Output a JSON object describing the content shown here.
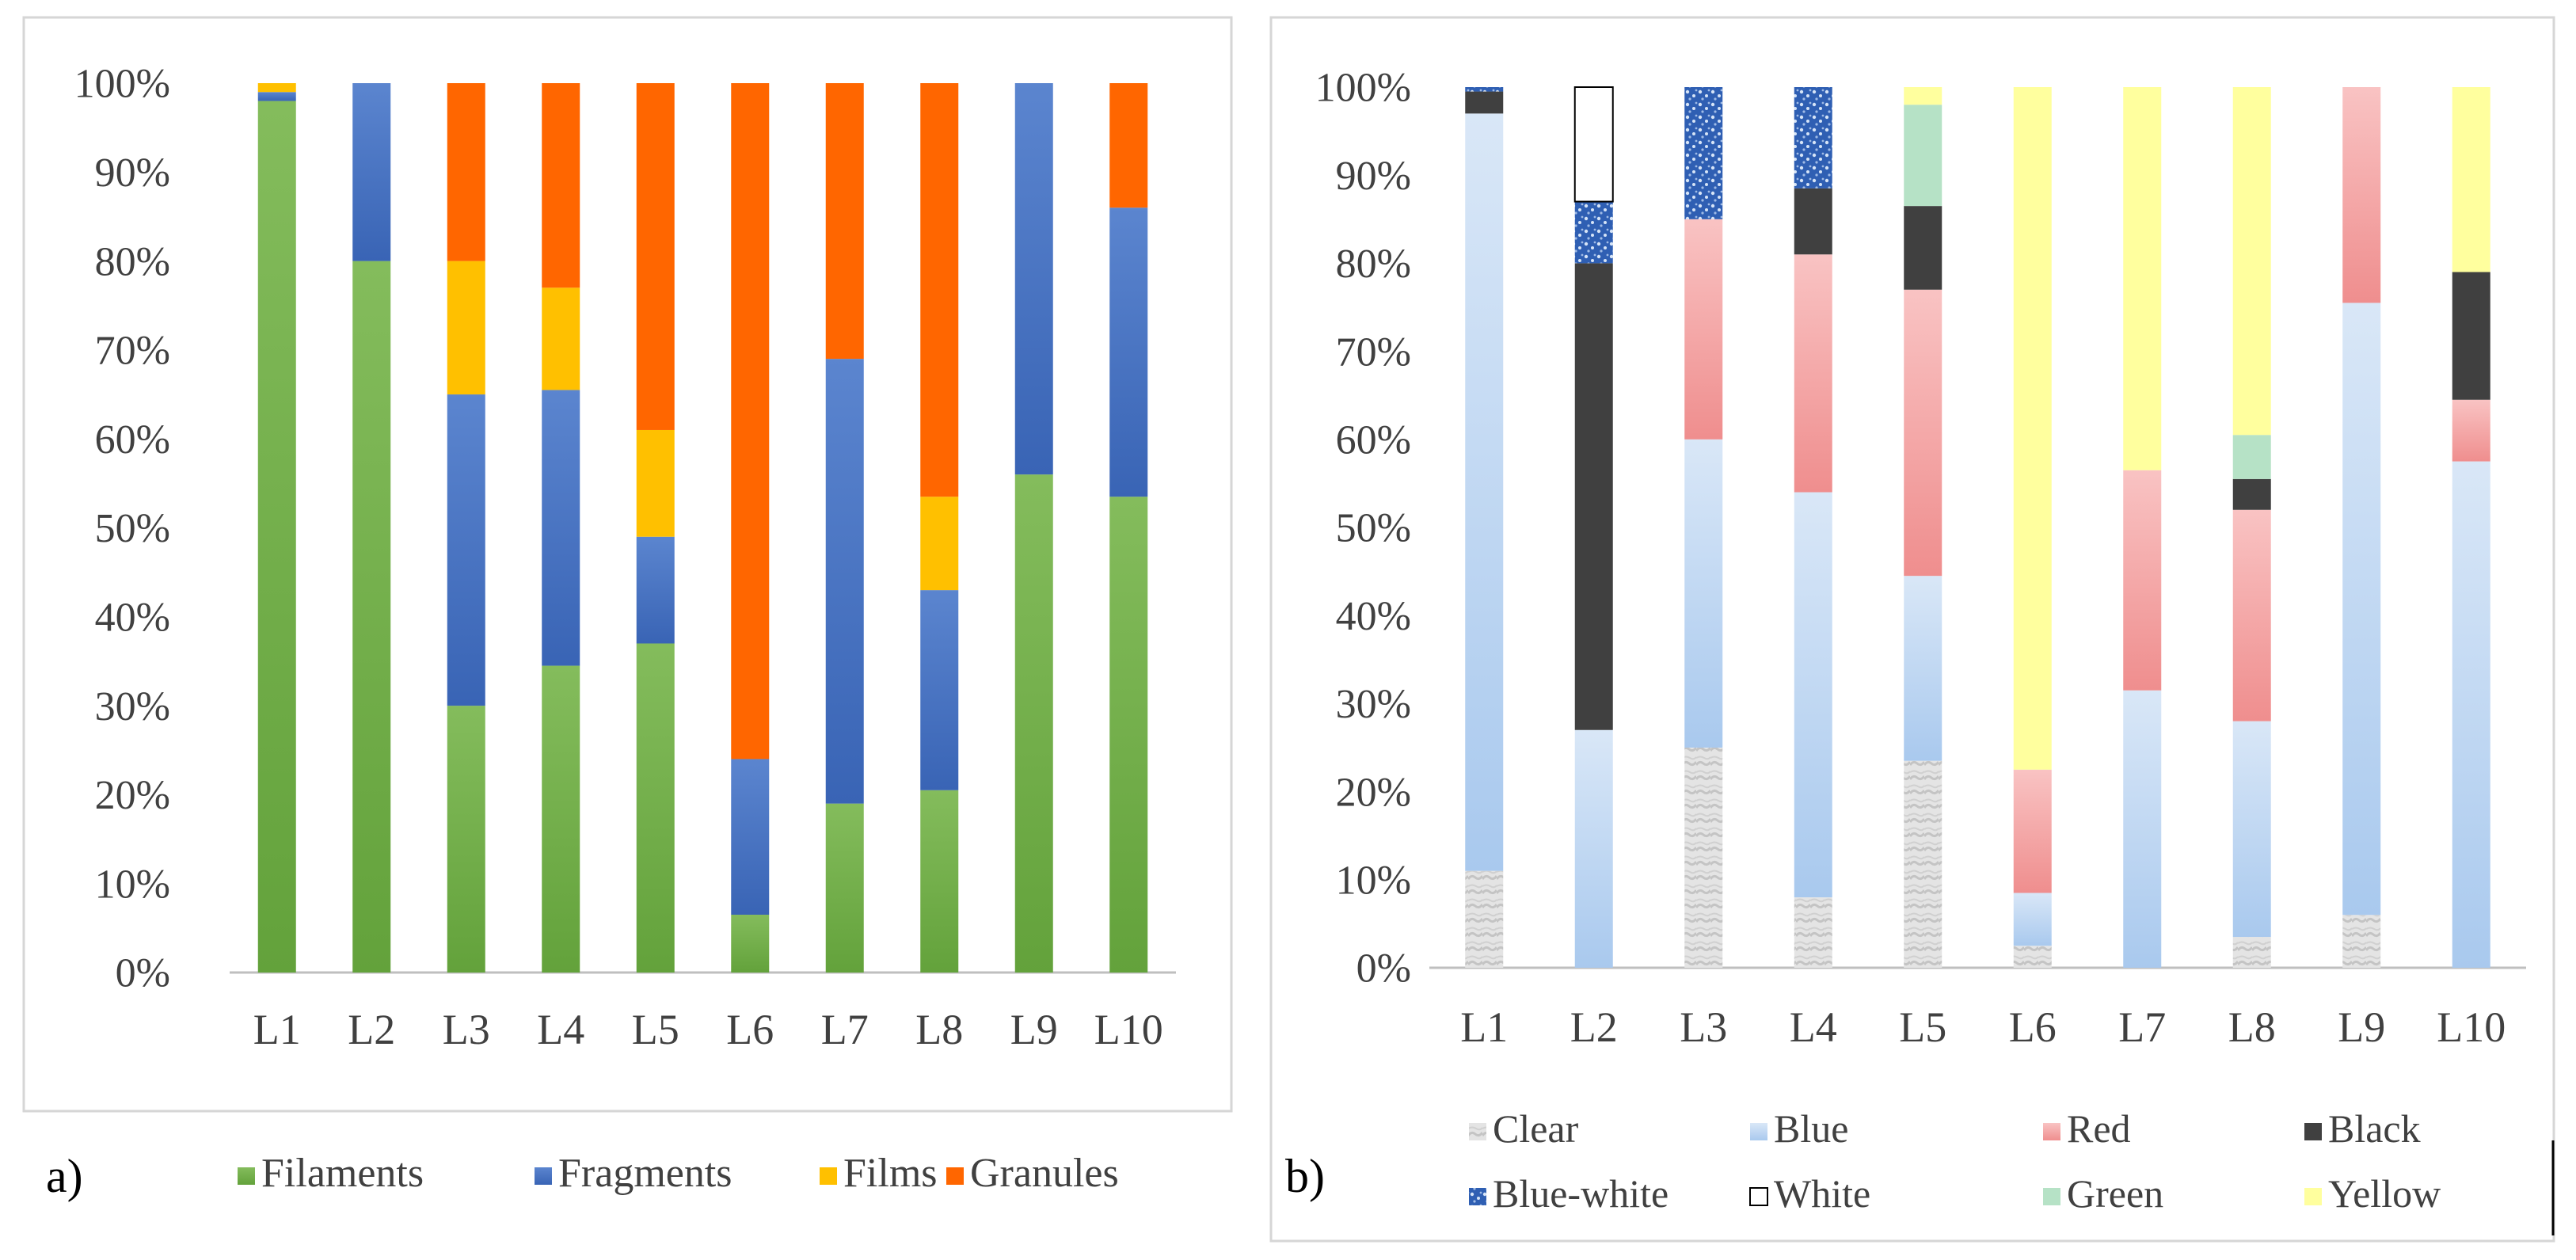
{
  "panel_labels": [
    "a)",
    "b)"
  ],
  "colors": {
    "Filaments": "#70ad47",
    "Fragments": "#4472c4",
    "Films": "#ffc000",
    "Granules": "#ff6600",
    "Clear": "#dcdcdc",
    "Blue": "#bdd7ee",
    "Red": "#f4a6a6",
    "Black": "#404040",
    "Blue-white": "#2f5fb3",
    "White": "#ffffff",
    "Green": "#b6e2c6",
    "Yellow": "#ffff9e"
  },
  "chart_data": [
    {
      "type": "bar",
      "stacked": true,
      "panel": "a)",
      "categories": [
        "L1",
        "L2",
        "L3",
        "L4",
        "L5",
        "L6",
        "L7",
        "L8",
        "L9",
        "L10"
      ],
      "y_tick_labels": [
        "0%",
        "10%",
        "20%",
        "30%",
        "40%",
        "50%",
        "60%",
        "70%",
        "80%",
        "90%",
        "100%"
      ],
      "ylim": [
        0,
        100
      ],
      "legend_position": "bottom",
      "series": [
        {
          "name": "Filaments",
          "values": [
            98,
            80,
            30,
            34.5,
            37,
            6.5,
            19,
            20.5,
            56,
            53.5
          ]
        },
        {
          "name": "Fragments",
          "values": [
            1,
            20,
            35,
            31,
            12,
            17.5,
            50,
            22.5,
            44,
            32.5
          ]
        },
        {
          "name": "Films",
          "values": [
            1,
            0,
            15,
            11.5,
            12,
            0,
            0,
            10.5,
            0,
            0
          ]
        },
        {
          "name": "Granules",
          "values": [
            0,
            0,
            20,
            23,
            39,
            76,
            31,
            46.5,
            0,
            14
          ]
        }
      ]
    },
    {
      "type": "bar",
      "stacked": true,
      "panel": "b)",
      "categories": [
        "L1",
        "L2",
        "L3",
        "L4",
        "L5",
        "L6",
        "L7",
        "L8",
        "L9",
        "L10"
      ],
      "y_tick_labels": [
        "0%",
        "10%",
        "20%",
        "30%",
        "40%",
        "50%",
        "60%",
        "70%",
        "80%",
        "90%",
        "100%"
      ],
      "ylim": [
        0,
        100
      ],
      "legend_position": "bottom",
      "series": [
        {
          "name": "Clear",
          "values": [
            11,
            0,
            25,
            8,
            23.5,
            2.5,
            0,
            3.5,
            6,
            0
          ]
        },
        {
          "name": "Blue",
          "values": [
            86,
            27,
            35,
            46,
            21,
            6,
            31.5,
            24.5,
            69.5,
            57.5
          ]
        },
        {
          "name": "Red",
          "values": [
            0,
            0,
            25,
            27,
            32.5,
            14,
            25,
            24,
            24.5,
            7
          ]
        },
        {
          "name": "Black",
          "values": [
            2.5,
            53,
            0,
            7.5,
            9.5,
            0,
            0,
            3.5,
            0,
            14.5
          ]
        },
        {
          "name": "Blue-white",
          "values": [
            0.5,
            7,
            15,
            11.5,
            0,
            0,
            0,
            0,
            0,
            0
          ]
        },
        {
          "name": "White",
          "values": [
            0,
            13,
            0,
            0,
            0,
            0,
            0,
            0,
            0,
            0
          ]
        },
        {
          "name": "Green",
          "values": [
            0,
            0,
            0,
            0,
            11.5,
            0,
            0,
            5,
            0,
            0
          ]
        },
        {
          "name": "Yellow",
          "values": [
            0,
            0,
            0,
            0,
            2,
            77.5,
            43.5,
            39.5,
            0,
            21
          ]
        }
      ]
    }
  ]
}
